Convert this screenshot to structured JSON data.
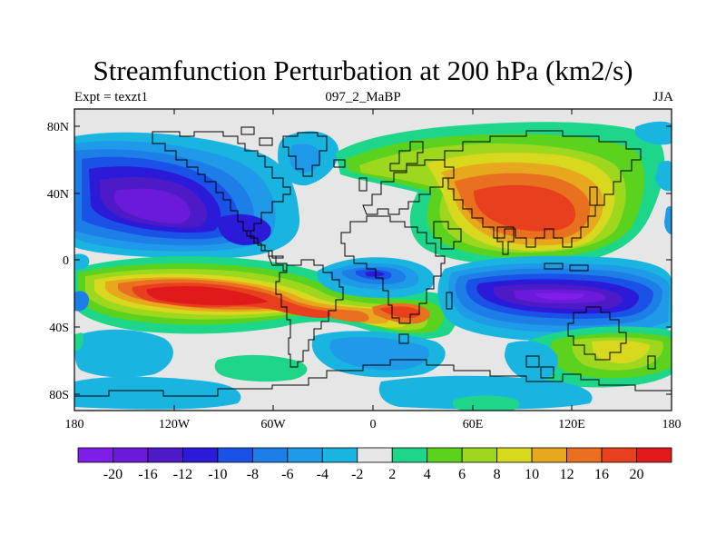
{
  "title": "Streamfunction Perturbation at 200 hPa (km2/s)",
  "subtitle_left": "Expt = texzt1",
  "subtitle_center": "097_2_MaBP",
  "subtitle_right": "JJA",
  "map": {
    "projection": "cylindrical-equidistant",
    "lon_range": [
      -180,
      180
    ],
    "lat_range": [
      -90,
      90
    ],
    "lat_ticks": [
      "80N",
      "40N",
      "0",
      "40S",
      "80S"
    ],
    "lon_ticks": [
      "180",
      "120W",
      "60W",
      "0",
      "60E",
      "120E",
      "180"
    ],
    "coastlines": "on"
  },
  "colorbar": {
    "colors": [
      "#7f1ee8",
      "#6a1ad8",
      "#4e1ac8",
      "#2b1ad8",
      "#1a52e8",
      "#1e7ee8",
      "#1e9ae8",
      "#19b4e0",
      "#e6e6e6",
      "#1ed68a",
      "#5ad21e",
      "#9ed81e",
      "#d8d81e",
      "#e8a81e",
      "#e8701e",
      "#e8401e",
      "#e01a1a"
    ],
    "labels": [
      "-20",
      "-16",
      "-12",
      "-10",
      "-8",
      "-6",
      "-4",
      "-2",
      "2",
      "4",
      "6",
      "8",
      "10",
      "12",
      "16",
      "20"
    ]
  },
  "chart_data": {
    "type": "heatmap",
    "title": "Streamfunction Perturbation at 200 hPa (km2/s)",
    "variable": "Streamfunction Perturbation",
    "level": "200 hPa",
    "units": "km2/s",
    "season": "JJA",
    "experiment": "texzt1",
    "case": "097_2_MaBP",
    "contour_levels": [
      -20,
      -16,
      -12,
      -10,
      -8,
      -6,
      -4,
      -2,
      2,
      4,
      6,
      8,
      10,
      12,
      16,
      20
    ],
    "features": [
      {
        "name": "negative center, NE Pacific / North America",
        "lon": -130,
        "lat": 40,
        "value": -18
      },
      {
        "name": "positive center, Asia",
        "lon": 95,
        "lat": 30,
        "value": 16
      },
      {
        "name": "positive band, South Pacific / South America",
        "lon": -90,
        "lat": -20,
        "value": 20
      },
      {
        "name": "positive center, South Atlantic",
        "lon": 25,
        "lat": -30,
        "value": 12
      },
      {
        "name": "negative center, South Indian Ocean / Australia",
        "lon": 110,
        "lat": -20,
        "value": -20
      },
      {
        "name": "negative center, equatorial Atlantic",
        "lon": 0,
        "lat": -7,
        "value": -10
      },
      {
        "name": "positive center, South Pacific high latitudes",
        "lon": 150,
        "lat": -50,
        "value": 8
      }
    ]
  }
}
